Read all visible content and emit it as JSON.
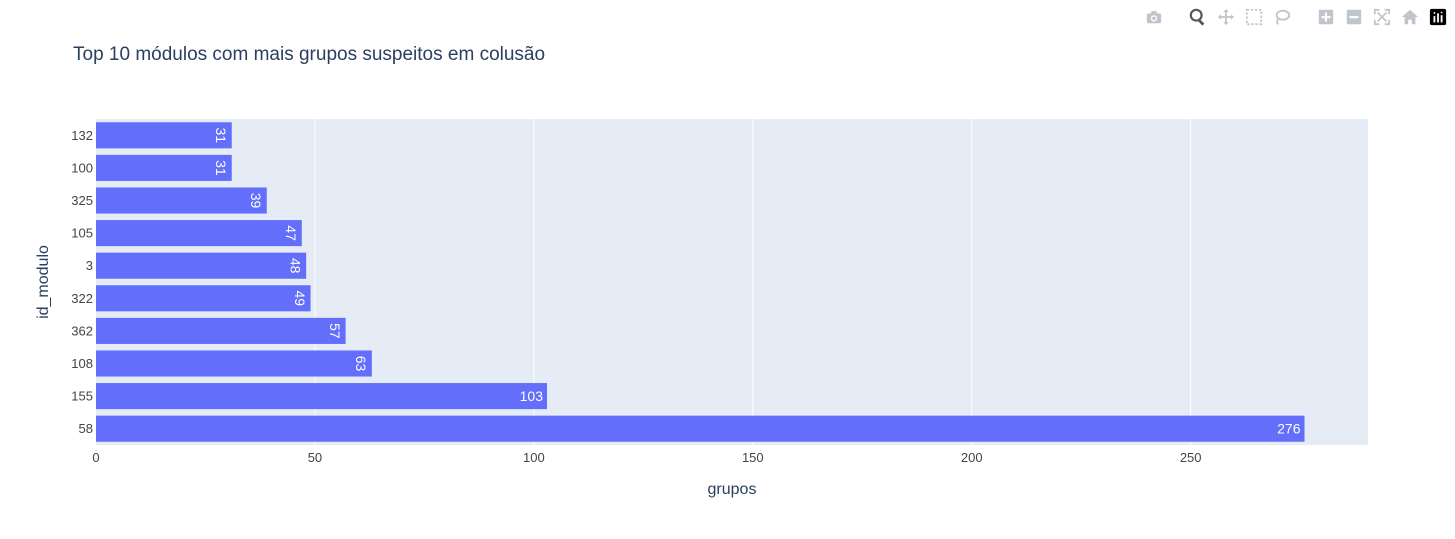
{
  "modebar": {
    "icons": [
      "camera-icon",
      "zoom-icon",
      "pan-icon",
      "box-select-icon",
      "lasso-select-icon",
      "zoom-in-icon",
      "zoom-out-icon",
      "autoscale-icon",
      "reset-axes-icon",
      "plotly-logo-icon"
    ]
  },
  "chart_data": {
    "type": "bar",
    "orientation": "horizontal",
    "title": "Top 10 módulos com mais grupos suspeitos em colusão",
    "xlabel": "grupos",
    "ylabel": "id_modulo",
    "categories": [
      "58",
      "155",
      "108",
      "362",
      "322",
      "3",
      "105",
      "325",
      "100",
      "132"
    ],
    "values": [
      276,
      103,
      63,
      57,
      49,
      48,
      47,
      39,
      31,
      31
    ],
    "xlim": [
      0,
      290.5
    ],
    "xticks": [
      0,
      50,
      100,
      150,
      200,
      250
    ],
    "grid": true,
    "colors": {
      "bar": "#636efa",
      "plot_bg": "#e5ecf6",
      "grid": "#ffffff",
      "text": "#2a3f5f",
      "tick_text": "#444444",
      "label_text": "#ffffff",
      "modebar_icon": "#bfc5cc"
    }
  }
}
